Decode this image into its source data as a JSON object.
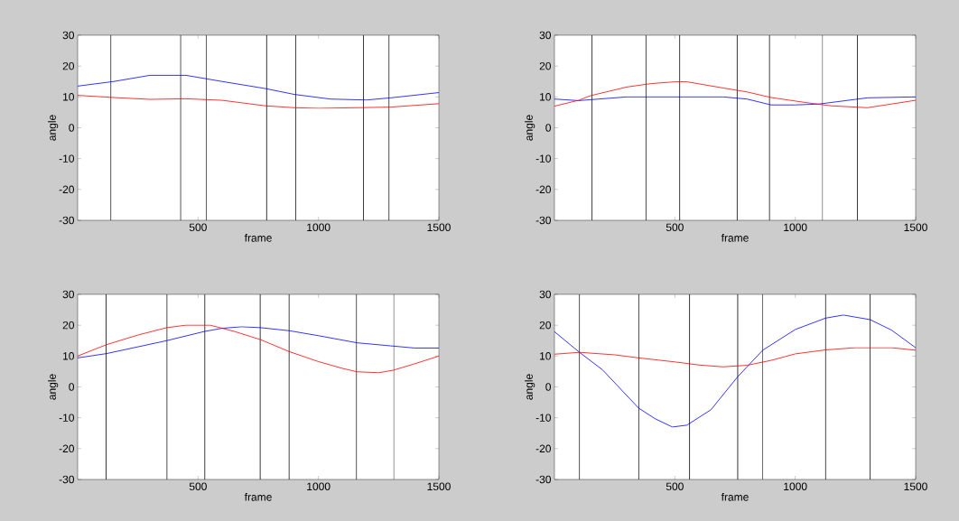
{
  "chart_data": [
    {
      "type": "line",
      "xlabel": "frame",
      "ylabel": "angle",
      "xlim": [
        0,
        1500
      ],
      "ylim": [
        -30,
        30
      ],
      "xticks": [
        500,
        1000,
        1500
      ],
      "yticks": [
        -30,
        -20,
        -10,
        0,
        10,
        20,
        30
      ],
      "grid": false,
      "series": [
        {
          "color": "#0000ff",
          "x": [
            0,
            150,
            300,
            450,
            600,
            780,
            900,
            1050,
            1200,
            1300,
            1500
          ],
          "values": [
            13.5,
            15,
            17,
            17,
            15,
            12.7,
            10.8,
            9.3,
            9,
            9.7,
            11.4
          ]
        },
        {
          "color": "#ff0000",
          "x": [
            0,
            150,
            300,
            450,
            600,
            780,
            900,
            1000,
            1230,
            1300,
            1500
          ],
          "values": [
            10.5,
            9.8,
            9.2,
            9.4,
            8.9,
            7.1,
            6.5,
            6.3,
            6.6,
            6.7,
            7.8
          ]
        }
      ],
      "ref_lines": [
        {
          "axis": "x",
          "value": 138,
          "color": "#000000"
        },
        {
          "axis": "x",
          "value": 428,
          "color": "#000000"
        },
        {
          "axis": "x",
          "value": 534,
          "color": "#000000"
        },
        {
          "axis": "x",
          "value": 785,
          "color": "#000000"
        },
        {
          "axis": "x",
          "value": 906,
          "color": "#000000"
        },
        {
          "axis": "x",
          "value": 1187,
          "color": "#000000"
        },
        {
          "axis": "x",
          "value": 1293,
          "color": "#000000"
        }
      ]
    },
    {
      "type": "line",
      "xlabel": "frame",
      "ylabel": "angle",
      "xlim": [
        0,
        1500
      ],
      "ylim": [
        -30,
        30
      ],
      "xticks": [
        500,
        1000,
        1500
      ],
      "yticks": [
        -30,
        -20,
        -10,
        0,
        10,
        20,
        30
      ],
      "grid": false,
      "series": [
        {
          "color": "#0000ff",
          "x": [
            0,
            100,
            300,
            500,
            700,
            800,
            900,
            1000,
            1100,
            1250,
            1300,
            1500
          ],
          "values": [
            9.3,
            8.8,
            10,
            10,
            10,
            9.3,
            7.4,
            7.4,
            7.7,
            9.2,
            9.7,
            10
          ]
        },
        {
          "color": "#ff0000",
          "x": [
            0,
            100,
            150,
            300,
            400,
            500,
            550,
            700,
            800,
            900,
            1050,
            1150,
            1300,
            1500
          ],
          "values": [
            7,
            8.9,
            10.4,
            13.2,
            14.3,
            14.9,
            14.9,
            12.9,
            11.6,
            9.8,
            8.1,
            7.1,
            6.5,
            8.9
          ]
        }
      ],
      "ref_lines": [
        {
          "axis": "x",
          "value": 156,
          "color": "#000000"
        },
        {
          "axis": "x",
          "value": 380,
          "color": "#000000"
        },
        {
          "axis": "x",
          "value": 520,
          "color": "#000000"
        },
        {
          "axis": "x",
          "value": 759,
          "color": "#000000"
        },
        {
          "axis": "x",
          "value": 893,
          "color": "#000000"
        },
        {
          "axis": "x",
          "value": 1113,
          "color": "#000000"
        },
        {
          "axis": "x",
          "value": 1258,
          "color": "#000000"
        }
      ]
    },
    {
      "type": "line",
      "xlabel": "frame",
      "ylabel": "angle",
      "xlim": [
        0,
        1500
      ],
      "ylim": [
        -30,
        30
      ],
      "xticks": [
        500,
        1000,
        1500
      ],
      "yticks": [
        -30,
        -20,
        -10,
        0,
        10,
        20,
        30
      ],
      "grid": false,
      "series": [
        {
          "color": "#0000ff",
          "x": [
            0,
            120,
            370,
            528,
            600,
            680,
            760,
            880,
            1000,
            1160,
            1300,
            1400,
            1500
          ],
          "values": [
            9.4,
            10.8,
            15,
            18,
            19,
            19.5,
            19.2,
            18.2,
            16.6,
            14.3,
            13.3,
            12.6,
            12.6
          ]
        },
        {
          "color": "#ff0000",
          "x": [
            0,
            120,
            250,
            370,
            450,
            550,
            650,
            760,
            880,
            1000,
            1100,
            1160,
            1250,
            1310,
            1400,
            1500
          ],
          "values": [
            10,
            13.7,
            16.8,
            19.2,
            20,
            20,
            18,
            15.3,
            11.4,
            8.2,
            6,
            4.9,
            4.6,
            5.4,
            7.5,
            10
          ]
        }
      ],
      "ref_lines": [
        {
          "axis": "x",
          "value": 118,
          "color": "#000000"
        },
        {
          "axis": "x",
          "value": 371,
          "color": "#000000"
        },
        {
          "axis": "x",
          "value": 528,
          "color": "#000000"
        },
        {
          "axis": "x",
          "value": 758,
          "color": "#000000"
        },
        {
          "axis": "x",
          "value": 878,
          "color": "#000000"
        },
        {
          "axis": "x",
          "value": 1158,
          "color": "#000000"
        },
        {
          "axis": "x",
          "value": 1313,
          "color": "#000000"
        }
      ]
    },
    {
      "type": "line",
      "xlabel": "frame",
      "ylabel": "angle",
      "xlim": [
        0,
        1500
      ],
      "ylim": [
        -30,
        30
      ],
      "xticks": [
        500,
        1000,
        1500
      ],
      "yticks": [
        -30,
        -20,
        -10,
        0,
        10,
        20,
        30
      ],
      "grid": false,
      "series": [
        {
          "color": "#0000ff",
          "x": [
            0,
            104,
            200,
            350,
            420,
            490,
            550,
            650,
            761,
            865,
            1000,
            1126,
            1200,
            1311,
            1400,
            1500
          ],
          "values": [
            17.9,
            11.2,
            5.5,
            -6.9,
            -10.4,
            -13,
            -12.4,
            -7.4,
            3.3,
            11.9,
            18.6,
            22.3,
            23.3,
            21.8,
            18.4,
            12.7
          ]
        },
        {
          "color": "#ff0000",
          "x": [
            0,
            104,
            250,
            350,
            500,
            600,
            700,
            800,
            900,
            1000,
            1126,
            1250,
            1400,
            1500
          ],
          "values": [
            10.6,
            11.2,
            10.4,
            9.4,
            8.1,
            7.1,
            6.5,
            7,
            8.6,
            10.7,
            12,
            12.7,
            12.7,
            11.9
          ]
        }
      ],
      "ref_lines": [
        {
          "axis": "x",
          "value": 104,
          "color": "#000000"
        },
        {
          "axis": "x",
          "value": 350,
          "color": "#000000"
        },
        {
          "axis": "x",
          "value": 561,
          "color": "#000000"
        },
        {
          "axis": "x",
          "value": 761,
          "color": "#000000"
        },
        {
          "axis": "x",
          "value": 865,
          "color": "#000000"
        },
        {
          "axis": "x",
          "value": 1126,
          "color": "#000000"
        },
        {
          "axis": "x",
          "value": 1311,
          "color": "#000000"
        }
      ]
    }
  ]
}
